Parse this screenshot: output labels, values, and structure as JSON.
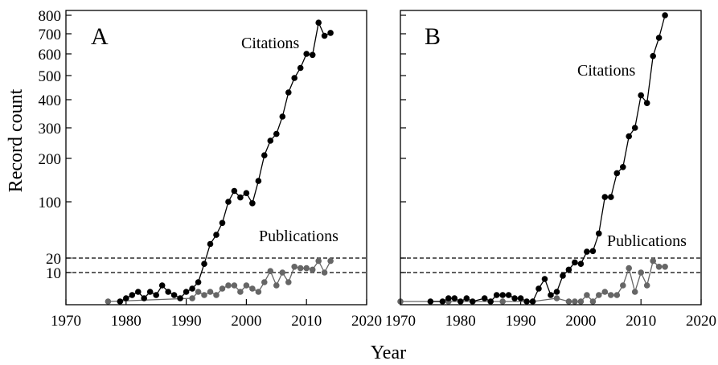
{
  "figure": {
    "ylabel": "Record count",
    "xlabel": "Year"
  },
  "chart_data": [
    {
      "type": "scatter",
      "panel": "A",
      "xlabel": "Year",
      "ylabel": "Record count",
      "xlim": [
        1970,
        2020
      ],
      "xticks": [
        1970,
        1980,
        1990,
        2000,
        2010,
        2020
      ],
      "yticks": [
        10,
        20,
        100,
        200,
        300,
        400,
        500,
        600,
        700,
        800
      ],
      "ytick_labels": [
        "10",
        "20",
        "100",
        "200",
        "300",
        "400",
        "500",
        "600",
        "700",
        "800"
      ],
      "y_scale": "custom (compressed below 20, near-logarithmic above)",
      "reference_lines": [
        10,
        20
      ],
      "annotations": [
        "Citations",
        "Publications"
      ],
      "series": [
        {
          "name": "Citations",
          "color": "#000000",
          "connected": true,
          "x": [
            1979,
            1980,
            1981,
            1982,
            1983,
            1984,
            1985,
            1986,
            1987,
            1988,
            1989,
            1990,
            1991,
            1992,
            1993,
            1994,
            1995,
            1996,
            1997,
            1998,
            1999,
            2000,
            2001,
            2002,
            2003,
            2004,
            2005,
            2006,
            2007,
            2008,
            2009,
            2010,
            2011,
            2012,
            2013,
            2014
          ],
          "y": [
            1,
            2,
            3,
            4,
            2,
            4,
            3,
            6,
            4,
            3,
            2,
            4,
            5,
            7,
            16,
            40,
            53,
            70,
            100,
            125,
            110,
            120,
            98,
            148,
            210,
            258,
            280,
            340,
            430,
            490,
            535,
            600,
            595,
            760,
            690,
            705
          ]
        },
        {
          "name": "Publications",
          "color": "#666666",
          "connected": true,
          "x": [
            1977,
            1991,
            1992,
            1993,
            1994,
            1995,
            1996,
            1997,
            1998,
            1999,
            2000,
            2001,
            2002,
            2003,
            2004,
            2005,
            2006,
            2007,
            2008,
            2009,
            2010,
            2011,
            2012,
            2013,
            2014
          ],
          "y": [
            1,
            2,
            4,
            3,
            4,
            3,
            5,
            6,
            6,
            4,
            6,
            5,
            4,
            7,
            11,
            6,
            10,
            7,
            14,
            13,
            13,
            12,
            18,
            10,
            18
          ]
        }
      ]
    },
    {
      "type": "scatter",
      "panel": "B",
      "xlabel": "Year",
      "xlim": [
        1970,
        2020
      ],
      "xticks": [
        1970,
        1980,
        1990,
        2000,
        2010,
        2020
      ],
      "reference_lines": [
        10,
        20
      ],
      "annotations": [
        "Citations",
        "Publications"
      ],
      "series": [
        {
          "name": "Citations",
          "color": "#000000",
          "connected": true,
          "x": [
            1975,
            1977,
            1978,
            1979,
            1980,
            1981,
            1982,
            1984,
            1985,
            1986,
            1987,
            1988,
            1989,
            1990,
            1991,
            1992,
            1993,
            1994,
            1995,
            1996,
            1997,
            1998,
            1999,
            2000,
            2001,
            2002,
            2003,
            2004,
            2005,
            2006,
            2007,
            2008,
            2009,
            2010,
            2011,
            2012,
            2013,
            2014
          ],
          "y": [
            1,
            1,
            2,
            2,
            1,
            2,
            1,
            2,
            1,
            3,
            3,
            3,
            2,
            2,
            1,
            1,
            5,
            8,
            3,
            4,
            9,
            12,
            17,
            16,
            29,
            30,
            55,
            111,
            111,
            166,
            180,
            272,
            300,
            418,
            388,
            590,
            680,
            800
          ]
        },
        {
          "name": "Publications",
          "color": "#666666",
          "connected": true,
          "x": [
            1970,
            1978,
            1987,
            1992,
            1996,
            1998,
            1999,
            2000,
            2001,
            2002,
            2003,
            2004,
            2005,
            2006,
            2007,
            2008,
            2009,
            2010,
            2011,
            2012,
            2013,
            2014
          ],
          "y": [
            1,
            1,
            1,
            1,
            2,
            1,
            1,
            1,
            3,
            1,
            3,
            4,
            3,
            3,
            6,
            13,
            4,
            10,
            6,
            18,
            14,
            14
          ]
        }
      ]
    }
  ]
}
